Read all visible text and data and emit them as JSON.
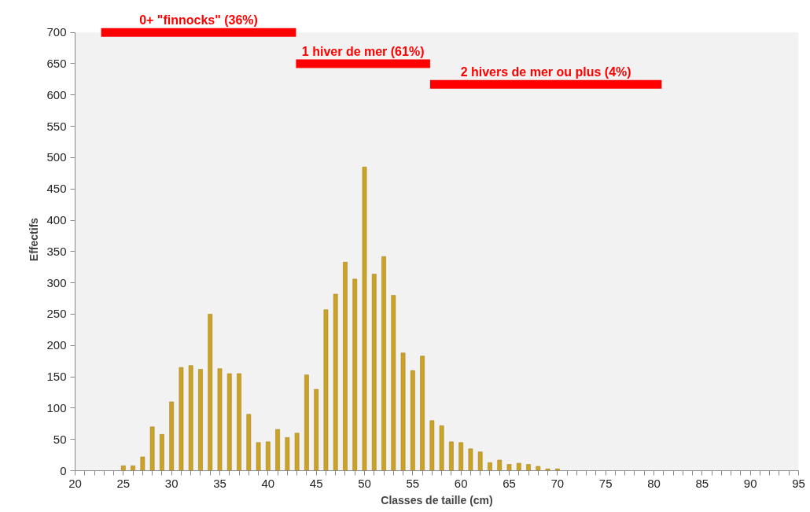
{
  "chart_data": {
    "type": "bar",
    "xlabel": "Classes de taille (cm)",
    "ylabel": "Effectifs",
    "x": [
      25,
      26,
      27,
      28,
      29,
      30,
      31,
      32,
      33,
      34,
      35,
      36,
      37,
      38,
      39,
      40,
      41,
      42,
      43,
      44,
      45,
      46,
      47,
      48,
      49,
      50,
      51,
      52,
      53,
      54,
      55,
      56,
      57,
      58,
      59,
      60,
      61,
      62,
      63,
      64,
      65,
      66,
      67,
      68,
      69,
      70
    ],
    "series": [
      {
        "color": "#c9a227",
        "values": [
          8,
          8,
          22,
          70,
          58,
          110,
          165,
          168,
          162,
          250,
          163,
          155,
          155,
          90,
          45,
          46,
          66,
          53,
          60,
          153,
          130,
          257,
          282,
          333,
          306,
          485,
          314,
          342,
          280,
          188,
          160,
          183,
          80,
          72,
          46,
          45,
          35,
          30,
          13,
          17,
          10,
          12,
          10,
          7,
          3,
          3
        ]
      },
      {
        "type": "line",
        "name": "0+ \"finnocks\" (36%)",
        "color": "#ff0000",
        "x": [
          22.7,
          42.9
        ],
        "values": [
          700,
          700
        ]
      },
      {
        "type": "line",
        "name": "1 hiver de mer (61%)",
        "color": "#ff0000",
        "x": [
          42.9,
          56.8
        ],
        "values": [
          650,
          650
        ]
      },
      {
        "type": "line",
        "name": "2 hivers de mer ou plus (4%)",
        "color": "#ff0000",
        "x": [
          56.8,
          80.8
        ],
        "values": [
          617,
          617
        ]
      }
    ],
    "xlim": [
      20,
      95
    ],
    "xticks": [
      20,
      {
        "value": 21,
        "label": null
      },
      {
        "value": 22,
        "label": null
      },
      {
        "value": 23,
        "label": null
      },
      {
        "value": 24,
        "label": null
      },
      25,
      {
        "value": 26,
        "label": null
      },
      {
        "value": 27,
        "label": null
      },
      {
        "value": 28,
        "label": null
      },
      {
        "value": 29,
        "label": null
      },
      30,
      {
        "value": 31,
        "label": null
      },
      {
        "value": 32,
        "label": null
      },
      {
        "value": 33,
        "label": null
      },
      {
        "value": 34,
        "label": null
      },
      35,
      {
        "value": 36,
        "label": null
      },
      {
        "value": 37,
        "label": null
      },
      {
        "value": 38,
        "label": null
      },
      {
        "value": 39,
        "label": null
      },
      40,
      {
        "value": 41,
        "label": null
      },
      {
        "value": 42,
        "label": null
      },
      {
        "value": 43,
        "label": null
      },
      {
        "value": 44,
        "label": null
      },
      45,
      {
        "value": 46,
        "label": null
      },
      {
        "value": 47,
        "label": null
      },
      {
        "value": 48,
        "label": null
      },
      {
        "value": 49,
        "label": null
      },
      50,
      {
        "value": 51,
        "label": null
      },
      {
        "value": 52,
        "label": null
      },
      {
        "value": 53,
        "label": null
      },
      {
        "value": 54,
        "label": null
      },
      55,
      {
        "value": 56,
        "label": null
      },
      {
        "value": 57,
        "label": null
      },
      {
        "value": 58,
        "label": null
      },
      {
        "value": 59,
        "label": null
      },
      60,
      {
        "value": 61,
        "label": null
      },
      {
        "value": 62,
        "label": null
      },
      {
        "value": 63,
        "label": null
      },
      {
        "value": 64,
        "label": null
      },
      65,
      {
        "value": 66,
        "label": null
      },
      {
        "value": 67,
        "label": null
      },
      {
        "value": 68,
        "label": null
      },
      {
        "value": 69,
        "label": null
      },
      70,
      {
        "value": 71,
        "label": null
      },
      {
        "value": 72,
        "label": null
      },
      {
        "value": 73,
        "label": null
      },
      {
        "value": 74,
        "label": null
      },
      75,
      {
        "value": 76,
        "label": null
      },
      {
        "value": 77,
        "label": null
      },
      {
        "value": 78,
        "label": null
      },
      {
        "value": 79,
        "label": null
      },
      80,
      {
        "value": 81,
        "label": null
      },
      {
        "value": 82,
        "label": null
      },
      {
        "value": 83,
        "label": null
      },
      {
        "value": 84,
        "label": null
      },
      85,
      {
        "value": 86,
        "label": null
      },
      {
        "value": 87,
        "label": null
      },
      {
        "value": 88,
        "label": null
      },
      {
        "value": 89,
        "label": null
      },
      90,
      {
        "value": 91,
        "label": null
      },
      {
        "value": 92,
        "label": null
      },
      {
        "value": 93,
        "label": null
      },
      {
        "value": 94,
        "label": null
      },
      95
    ],
    "ylim": [
      0,
      700
    ],
    "yticks": [
      0,
      50,
      100,
      150,
      200,
      250,
      300,
      350,
      400,
      450,
      500,
      550,
      600,
      650,
      700
    ],
    "grid": false
  }
}
